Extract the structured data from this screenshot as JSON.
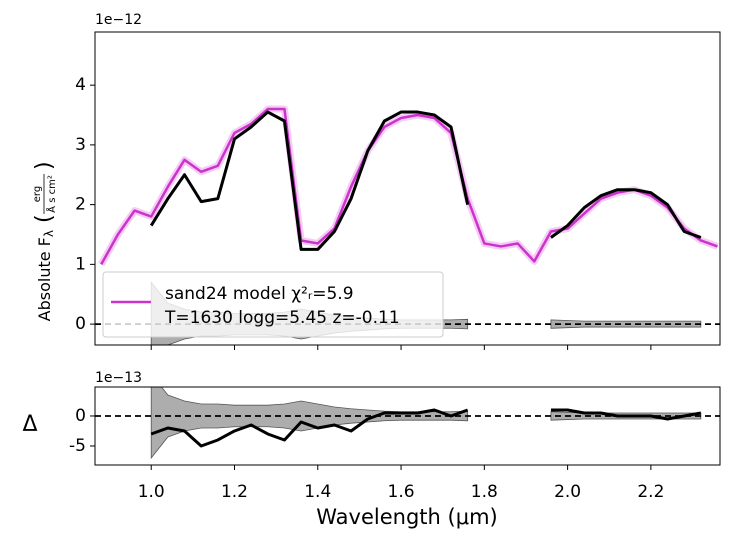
{
  "chart_data": [
    {
      "type": "line",
      "ylabel": "Absolute F",
      "ylabel_sub": "λ",
      "ylabel_num": "erg",
      "ylabel_den": "Å s cm²",
      "y_offset_label": "1e−12",
      "xlim": [
        0.865,
        2.366
      ],
      "ylim": [
        -0.35,
        4.89
      ],
      "yticks": [
        0,
        1,
        2,
        3,
        4
      ],
      "x": [
        0.88,
        0.92,
        0.96,
        1.0,
        1.04,
        1.08,
        1.12,
        1.16,
        1.2,
        1.24,
        1.28,
        1.32,
        1.36,
        1.4,
        1.44,
        1.48,
        1.52,
        1.56,
        1.6,
        1.64,
        1.68,
        1.72,
        1.76,
        1.8,
        1.84,
        1.88,
        1.92,
        1.96,
        2.0,
        2.04,
        2.08,
        2.12,
        2.16,
        2.2,
        2.24,
        2.28,
        2.32,
        2.36
      ],
      "series": [
        {
          "name": "sand24 model χ²ᵣ=5.9",
          "color": "#cc33cc",
          "halo_color": "#eeaaee",
          "values": [
            1.0,
            1.5,
            1.9,
            1.8,
            2.3,
            2.75,
            2.55,
            2.65,
            3.2,
            3.35,
            3.6,
            3.6,
            1.4,
            1.35,
            1.6,
            2.3,
            2.9,
            3.3,
            3.45,
            3.5,
            3.45,
            3.2,
            2.1,
            1.35,
            1.3,
            1.35,
            1.05,
            1.55,
            1.6,
            1.85,
            2.1,
            2.2,
            2.25,
            2.15,
            1.95,
            1.6,
            1.4,
            1.3
          ]
        },
        {
          "color": "#000000",
          "values": [
            null,
            null,
            null,
            1.65,
            2.1,
            2.5,
            2.05,
            2.1,
            3.1,
            3.3,
            3.55,
            3.4,
            1.25,
            1.25,
            1.55,
            2.1,
            2.9,
            3.4,
            3.55,
            3.55,
            3.5,
            3.3,
            2.0,
            null,
            null,
            null,
            null,
            1.45,
            1.65,
            1.95,
            2.15,
            2.25,
            2.25,
            2.2,
            2.0,
            1.55,
            1.45,
            null
          ]
        }
      ],
      "error_band": [
        null,
        null,
        null,
        0.7,
        0.35,
        0.25,
        0.2,
        0.2,
        0.18,
        0.18,
        0.18,
        0.2,
        0.25,
        0.2,
        0.15,
        0.12,
        0.1,
        0.08,
        0.07,
        0.07,
        0.07,
        0.07,
        0.08,
        null,
        null,
        null,
        null,
        0.07,
        0.06,
        0.05,
        0.05,
        0.05,
        0.05,
        0.05,
        0.05,
        0.05,
        0.05,
        null
      ],
      "band_color": "#999999",
      "zero_line": true,
      "legend": "lower left",
      "legend_note": "T=1630 logg=5.45 z=-0.11"
    },
    {
      "type": "line",
      "ylabel": "Δ",
      "xlabel": "Wavelength (μm)",
      "y_offset_label": "1e−13",
      "xlim": [
        0.865,
        2.366
      ],
      "ylim": [
        -8.17,
        4.83
      ],
      "yticks": [
        -5,
        0
      ],
      "xticks": [
        {
          "value": 1.0,
          "label": "1.0"
        },
        {
          "value": 1.2,
          "label": "1.2"
        },
        {
          "value": 1.4,
          "label": "1.4"
        },
        {
          "value": 1.6,
          "label": "1.6"
        },
        {
          "value": 1.8,
          "label": "1.8"
        },
        {
          "value": 2.0,
          "label": "2.0"
        },
        {
          "value": 2.2,
          "label": "2.2"
        }
      ],
      "x": [
        0.88,
        0.92,
        0.96,
        1.0,
        1.04,
        1.08,
        1.12,
        1.16,
        1.2,
        1.24,
        1.28,
        1.32,
        1.36,
        1.4,
        1.44,
        1.48,
        1.52,
        1.56,
        1.6,
        1.64,
        1.68,
        1.72,
        1.76,
        1.8,
        1.84,
        1.88,
        1.92,
        1.96,
        2.0,
        2.04,
        2.08,
        2.12,
        2.16,
        2.2,
        2.24,
        2.28,
        2.32,
        2.36
      ],
      "series": [
        {
          "color": "#000000",
          "values": [
            null,
            null,
            null,
            -3,
            -2,
            -2.5,
            -5,
            -4,
            -2.5,
            -1.5,
            -3,
            -4,
            -1,
            -2,
            -1.5,
            -2.5,
            -0.5,
            0.5,
            0.5,
            0.5,
            1,
            0,
            1,
            null,
            null,
            null,
            null,
            1,
            1,
            0.5,
            0.5,
            0,
            0,
            0,
            -0.5,
            0,
            0.5,
            null
          ]
        }
      ],
      "error_band": [
        null,
        null,
        null,
        7,
        3.5,
        2.5,
        2,
        2,
        1.8,
        1.8,
        1.8,
        2,
        2.5,
        2,
        1.5,
        1.2,
        1,
        0.8,
        0.7,
        0.7,
        0.7,
        0.7,
        0.8,
        null,
        null,
        null,
        null,
        0.7,
        0.6,
        0.5,
        0.5,
        0.5,
        0.5,
        0.5,
        0.5,
        0.5,
        0.5,
        null
      ],
      "band_color": "#999999",
      "zero_line": true
    }
  ]
}
